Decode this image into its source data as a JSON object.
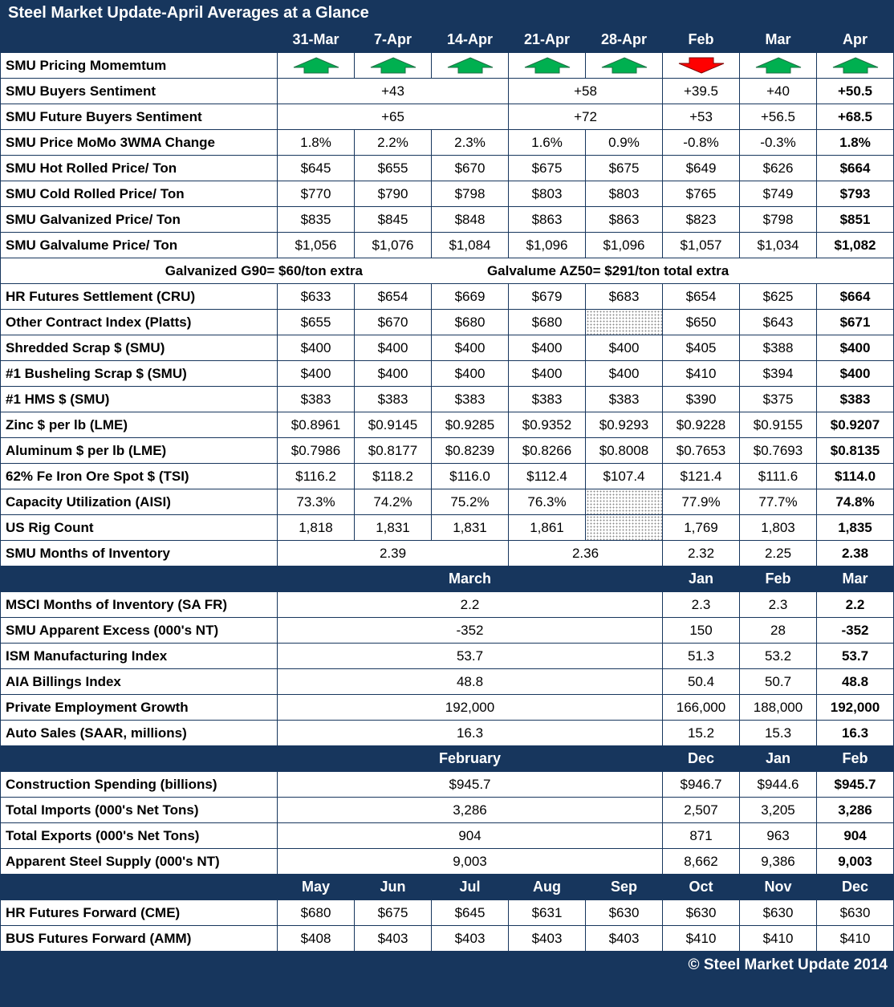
{
  "chart_data": {
    "type": "table",
    "title": "Steel Market Update-April Averages at a Glance",
    "footer": "© Steel Market Update 2014",
    "colors": {
      "header_bg": "#17365D",
      "cell_border": "#17365D",
      "up_arrow": "#00B050",
      "up_arrow_outline": "#1e7145",
      "down_arrow": "#FF0000",
      "down_arrow_outline": "#7f0000"
    },
    "rows": [
      {
        "type": "colheader",
        "label": "",
        "cells": [
          {
            "v": "31-Mar"
          },
          {
            "v": "7-Apr"
          },
          {
            "v": "14-Apr"
          },
          {
            "v": "21-Apr"
          },
          {
            "v": "28-Apr"
          },
          {
            "v": "Feb"
          },
          {
            "v": "Mar"
          },
          {
            "v": "Apr"
          }
        ]
      },
      {
        "type": "data",
        "label": "SMU Pricing Momemtum",
        "cells": [
          {
            "k": "up"
          },
          {
            "k": "up"
          },
          {
            "k": "up"
          },
          {
            "k": "up"
          },
          {
            "k": "up"
          },
          {
            "k": "down"
          },
          {
            "k": "up"
          },
          {
            "k": "up"
          }
        ]
      },
      {
        "type": "data",
        "label": "SMU Buyers Sentiment",
        "cells": [
          {
            "v": "+43",
            "span": 3
          },
          {
            "v": "+58",
            "span": 2
          },
          {
            "v": "+39.5"
          },
          {
            "v": "+40"
          },
          {
            "v": "+50.5",
            "b": 1
          }
        ]
      },
      {
        "type": "data",
        "label": "SMU Future Buyers Sentiment",
        "cells": [
          {
            "v": "+65",
            "span": 3
          },
          {
            "v": "+72",
            "span": 2
          },
          {
            "v": "+53"
          },
          {
            "v": "+56.5"
          },
          {
            "v": "+68.5",
            "b": 1
          }
        ]
      },
      {
        "type": "data",
        "label": "SMU Price MoMo 3WMA Change",
        "cells": [
          {
            "v": "1.8%"
          },
          {
            "v": "2.2%"
          },
          {
            "v": "2.3%"
          },
          {
            "v": "1.6%"
          },
          {
            "v": "0.9%"
          },
          {
            "v": "-0.8%"
          },
          {
            "v": "-0.3%"
          },
          {
            "v": "1.8%",
            "b": 1
          }
        ]
      },
      {
        "type": "data",
        "label": "SMU Hot Rolled Price/ Ton",
        "cells": [
          {
            "v": "$645"
          },
          {
            "v": "$655"
          },
          {
            "v": "$670"
          },
          {
            "v": "$675"
          },
          {
            "v": "$675"
          },
          {
            "v": "$649"
          },
          {
            "v": "$626"
          },
          {
            "v": "$664",
            "b": 1
          }
        ]
      },
      {
        "type": "data",
        "label": "SMU Cold Rolled Price/ Ton",
        "cells": [
          {
            "v": "$770"
          },
          {
            "v": "$790"
          },
          {
            "v": "$798"
          },
          {
            "v": "$803"
          },
          {
            "v": "$803"
          },
          {
            "v": "$765"
          },
          {
            "v": "$749"
          },
          {
            "v": "$793",
            "b": 1
          }
        ]
      },
      {
        "type": "data",
        "label": "SMU Galvanized Price/ Ton",
        "cells": [
          {
            "v": "$835"
          },
          {
            "v": "$845"
          },
          {
            "v": "$848"
          },
          {
            "v": "$863"
          },
          {
            "v": "$863"
          },
          {
            "v": "$823"
          },
          {
            "v": "$798"
          },
          {
            "v": "$851",
            "b": 1
          }
        ]
      },
      {
        "type": "data",
        "label": "SMU Galvalume Price/ Ton",
        "cells": [
          {
            "v": "$1,056"
          },
          {
            "v": "$1,076"
          },
          {
            "v": "$1,084"
          },
          {
            "v": "$1,096"
          },
          {
            "v": "$1,096"
          },
          {
            "v": "$1,057"
          },
          {
            "v": "$1,034"
          },
          {
            "v": "$1,082",
            "b": 1
          }
        ]
      },
      {
        "type": "note",
        "notes": [
          "Galvanized G90= $60/ton extra",
          "Galvalume AZ50= $291/ton total extra"
        ]
      },
      {
        "type": "data",
        "label": "HR Futures Settlement (CRU)",
        "cells": [
          {
            "v": "$633"
          },
          {
            "v": "$654"
          },
          {
            "v": "$669"
          },
          {
            "v": "$679"
          },
          {
            "v": "$683"
          },
          {
            "v": "$654"
          },
          {
            "v": "$625"
          },
          {
            "v": "$664",
            "b": 1
          }
        ]
      },
      {
        "type": "data",
        "label": "Other Contract Index (Platts)",
        "cells": [
          {
            "v": "$655"
          },
          {
            "v": "$670"
          },
          {
            "v": "$680"
          },
          {
            "v": "$680"
          },
          {
            "k": "hatch"
          },
          {
            "v": "$650"
          },
          {
            "v": "$643"
          },
          {
            "v": "$671",
            "b": 1
          }
        ]
      },
      {
        "type": "data",
        "label": "Shredded Scrap $ (SMU)",
        "cells": [
          {
            "v": "$400"
          },
          {
            "v": "$400"
          },
          {
            "v": "$400"
          },
          {
            "v": "$400"
          },
          {
            "v": "$400"
          },
          {
            "v": "$405"
          },
          {
            "v": "$388"
          },
          {
            "v": "$400",
            "b": 1
          }
        ]
      },
      {
        "type": "data",
        "label": "#1 Busheling Scrap $ (SMU)",
        "cells": [
          {
            "v": "$400"
          },
          {
            "v": "$400"
          },
          {
            "v": "$400"
          },
          {
            "v": "$400"
          },
          {
            "v": "$400"
          },
          {
            "v": "$410"
          },
          {
            "v": "$394"
          },
          {
            "v": "$400",
            "b": 1
          }
        ]
      },
      {
        "type": "data",
        "label": "#1 HMS $ (SMU)",
        "cells": [
          {
            "v": "$383"
          },
          {
            "v": "$383"
          },
          {
            "v": "$383"
          },
          {
            "v": "$383"
          },
          {
            "v": "$383"
          },
          {
            "v": "$390"
          },
          {
            "v": "$375"
          },
          {
            "v": "$383",
            "b": 1
          }
        ]
      },
      {
        "type": "data",
        "label": "Zinc $ per lb (LME)",
        "cells": [
          {
            "v": "$0.8961"
          },
          {
            "v": "$0.9145"
          },
          {
            "v": "$0.9285"
          },
          {
            "v": "$0.9352"
          },
          {
            "v": "$0.9293"
          },
          {
            "v": "$0.9228"
          },
          {
            "v": "$0.9155"
          },
          {
            "v": "$0.9207",
            "b": 1
          }
        ]
      },
      {
        "type": "data",
        "label": "Aluminum $ per lb (LME)",
        "cells": [
          {
            "v": "$0.7986"
          },
          {
            "v": "$0.8177"
          },
          {
            "v": "$0.8239"
          },
          {
            "v": "$0.8266"
          },
          {
            "v": "$0.8008"
          },
          {
            "v": "$0.7653"
          },
          {
            "v": "$0.7693"
          },
          {
            "v": "$0.8135",
            "b": 1
          }
        ]
      },
      {
        "type": "data",
        "label": "62% Fe Iron Ore Spot $ (TSI)",
        "cells": [
          {
            "v": "$116.2"
          },
          {
            "v": "$118.2"
          },
          {
            "v": "$116.0"
          },
          {
            "v": "$112.4"
          },
          {
            "v": "$107.4"
          },
          {
            "v": "$121.4"
          },
          {
            "v": "$111.6"
          },
          {
            "v": "$114.0",
            "b": 1
          }
        ]
      },
      {
        "type": "data",
        "label": "Capacity Utilization (AISI)",
        "cells": [
          {
            "v": "73.3%"
          },
          {
            "v": "74.2%"
          },
          {
            "v": "75.2%"
          },
          {
            "v": "76.3%"
          },
          {
            "k": "hatch"
          },
          {
            "v": "77.9%"
          },
          {
            "v": "77.7%"
          },
          {
            "v": "74.8%",
            "b": 1
          }
        ]
      },
      {
        "type": "data",
        "label": "US Rig Count",
        "cells": [
          {
            "v": "1,818"
          },
          {
            "v": "1,831"
          },
          {
            "v": "1,831"
          },
          {
            "v": "1,861"
          },
          {
            "k": "hatch"
          },
          {
            "v": "1,769"
          },
          {
            "v": "1,803"
          },
          {
            "v": "1,835",
            "b": 1
          }
        ]
      },
      {
        "type": "data",
        "label": "SMU Months of Inventory",
        "cells": [
          {
            "v": "2.39",
            "span": 3
          },
          {
            "v": "2.36",
            "span": 2
          },
          {
            "v": "2.32"
          },
          {
            "v": "2.25"
          },
          {
            "v": "2.38",
            "b": 1
          }
        ]
      },
      {
        "type": "sectionheader",
        "label": "",
        "cells": [
          {
            "v": "March",
            "span": 5
          },
          {
            "v": "Jan"
          },
          {
            "v": "Feb"
          },
          {
            "v": "Mar"
          }
        ]
      },
      {
        "type": "data",
        "label": "MSCI Months of Inventory (SA FR)",
        "cells": [
          {
            "v": "2.2",
            "span": 5
          },
          {
            "v": "2.3"
          },
          {
            "v": "2.3"
          },
          {
            "v": "2.2",
            "b": 1
          }
        ]
      },
      {
        "type": "data",
        "label": "SMU Apparent Excess (000's NT)",
        "cells": [
          {
            "v": "-352",
            "span": 5
          },
          {
            "v": "150"
          },
          {
            "v": "28"
          },
          {
            "v": "-352",
            "b": 1
          }
        ]
      },
      {
        "type": "data",
        "label": "ISM Manufacturing Index",
        "cells": [
          {
            "v": "53.7",
            "span": 5
          },
          {
            "v": "51.3"
          },
          {
            "v": "53.2"
          },
          {
            "v": "53.7",
            "b": 1
          }
        ]
      },
      {
        "type": "data",
        "label": "AIA Billings Index",
        "cells": [
          {
            "v": "48.8",
            "span": 5
          },
          {
            "v": "50.4"
          },
          {
            "v": "50.7"
          },
          {
            "v": "48.8",
            "b": 1
          }
        ]
      },
      {
        "type": "data",
        "label": "Private Employment Growth",
        "cells": [
          {
            "v": "192,000",
            "span": 5
          },
          {
            "v": "166,000"
          },
          {
            "v": "188,000"
          },
          {
            "v": "192,000",
            "b": 1
          }
        ]
      },
      {
        "type": "data",
        "label": "Auto Sales (SAAR, millions)",
        "cells": [
          {
            "v": "16.3",
            "span": 5
          },
          {
            "v": "15.2"
          },
          {
            "v": "15.3"
          },
          {
            "v": "16.3",
            "b": 1
          }
        ]
      },
      {
        "type": "sectionheader",
        "label": "",
        "cells": [
          {
            "v": "February",
            "span": 5
          },
          {
            "v": "Dec"
          },
          {
            "v": "Jan"
          },
          {
            "v": "Feb"
          }
        ]
      },
      {
        "type": "data",
        "label": "Construction Spending (billions)",
        "cells": [
          {
            "v": "$945.7",
            "span": 5
          },
          {
            "v": "$946.7"
          },
          {
            "v": "$944.6"
          },
          {
            "v": "$945.7",
            "b": 1
          }
        ]
      },
      {
        "type": "data",
        "label": "Total Imports (000's Net Tons)",
        "cells": [
          {
            "v": "3,286",
            "span": 5
          },
          {
            "v": "2,507"
          },
          {
            "v": "3,205"
          },
          {
            "v": "3,286",
            "b": 1
          }
        ]
      },
      {
        "type": "data",
        "label": "Total Exports (000's Net Tons)",
        "cells": [
          {
            "v": "904",
            "span": 5
          },
          {
            "v": "871"
          },
          {
            "v": "963"
          },
          {
            "v": "904",
            "b": 1
          }
        ]
      },
      {
        "type": "data",
        "label": "Apparent Steel Supply (000's NT)",
        "cells": [
          {
            "v": "9,003",
            "span": 5
          },
          {
            "v": "8,662"
          },
          {
            "v": "9,386"
          },
          {
            "v": "9,003",
            "b": 1
          }
        ]
      },
      {
        "type": "sectionheader",
        "label": "",
        "cells": [
          {
            "v": "May"
          },
          {
            "v": "Jun"
          },
          {
            "v": "Jul"
          },
          {
            "v": "Aug"
          },
          {
            "v": "Sep"
          },
          {
            "v": "Oct"
          },
          {
            "v": "Nov"
          },
          {
            "v": "Dec"
          }
        ]
      },
      {
        "type": "data",
        "label": "HR Futures Forward (CME)",
        "cells": [
          {
            "v": "$680"
          },
          {
            "v": "$675"
          },
          {
            "v": "$645"
          },
          {
            "v": "$631"
          },
          {
            "v": "$630"
          },
          {
            "v": "$630"
          },
          {
            "v": "$630"
          },
          {
            "v": "$630"
          }
        ]
      },
      {
        "type": "data",
        "label": "BUS Futures Forward (AMM)",
        "cells": [
          {
            "v": "$408"
          },
          {
            "v": "$403"
          },
          {
            "v": "$403"
          },
          {
            "v": "$403"
          },
          {
            "v": "$403"
          },
          {
            "v": "$410"
          },
          {
            "v": "$410"
          },
          {
            "v": "$410"
          }
        ]
      }
    ]
  }
}
